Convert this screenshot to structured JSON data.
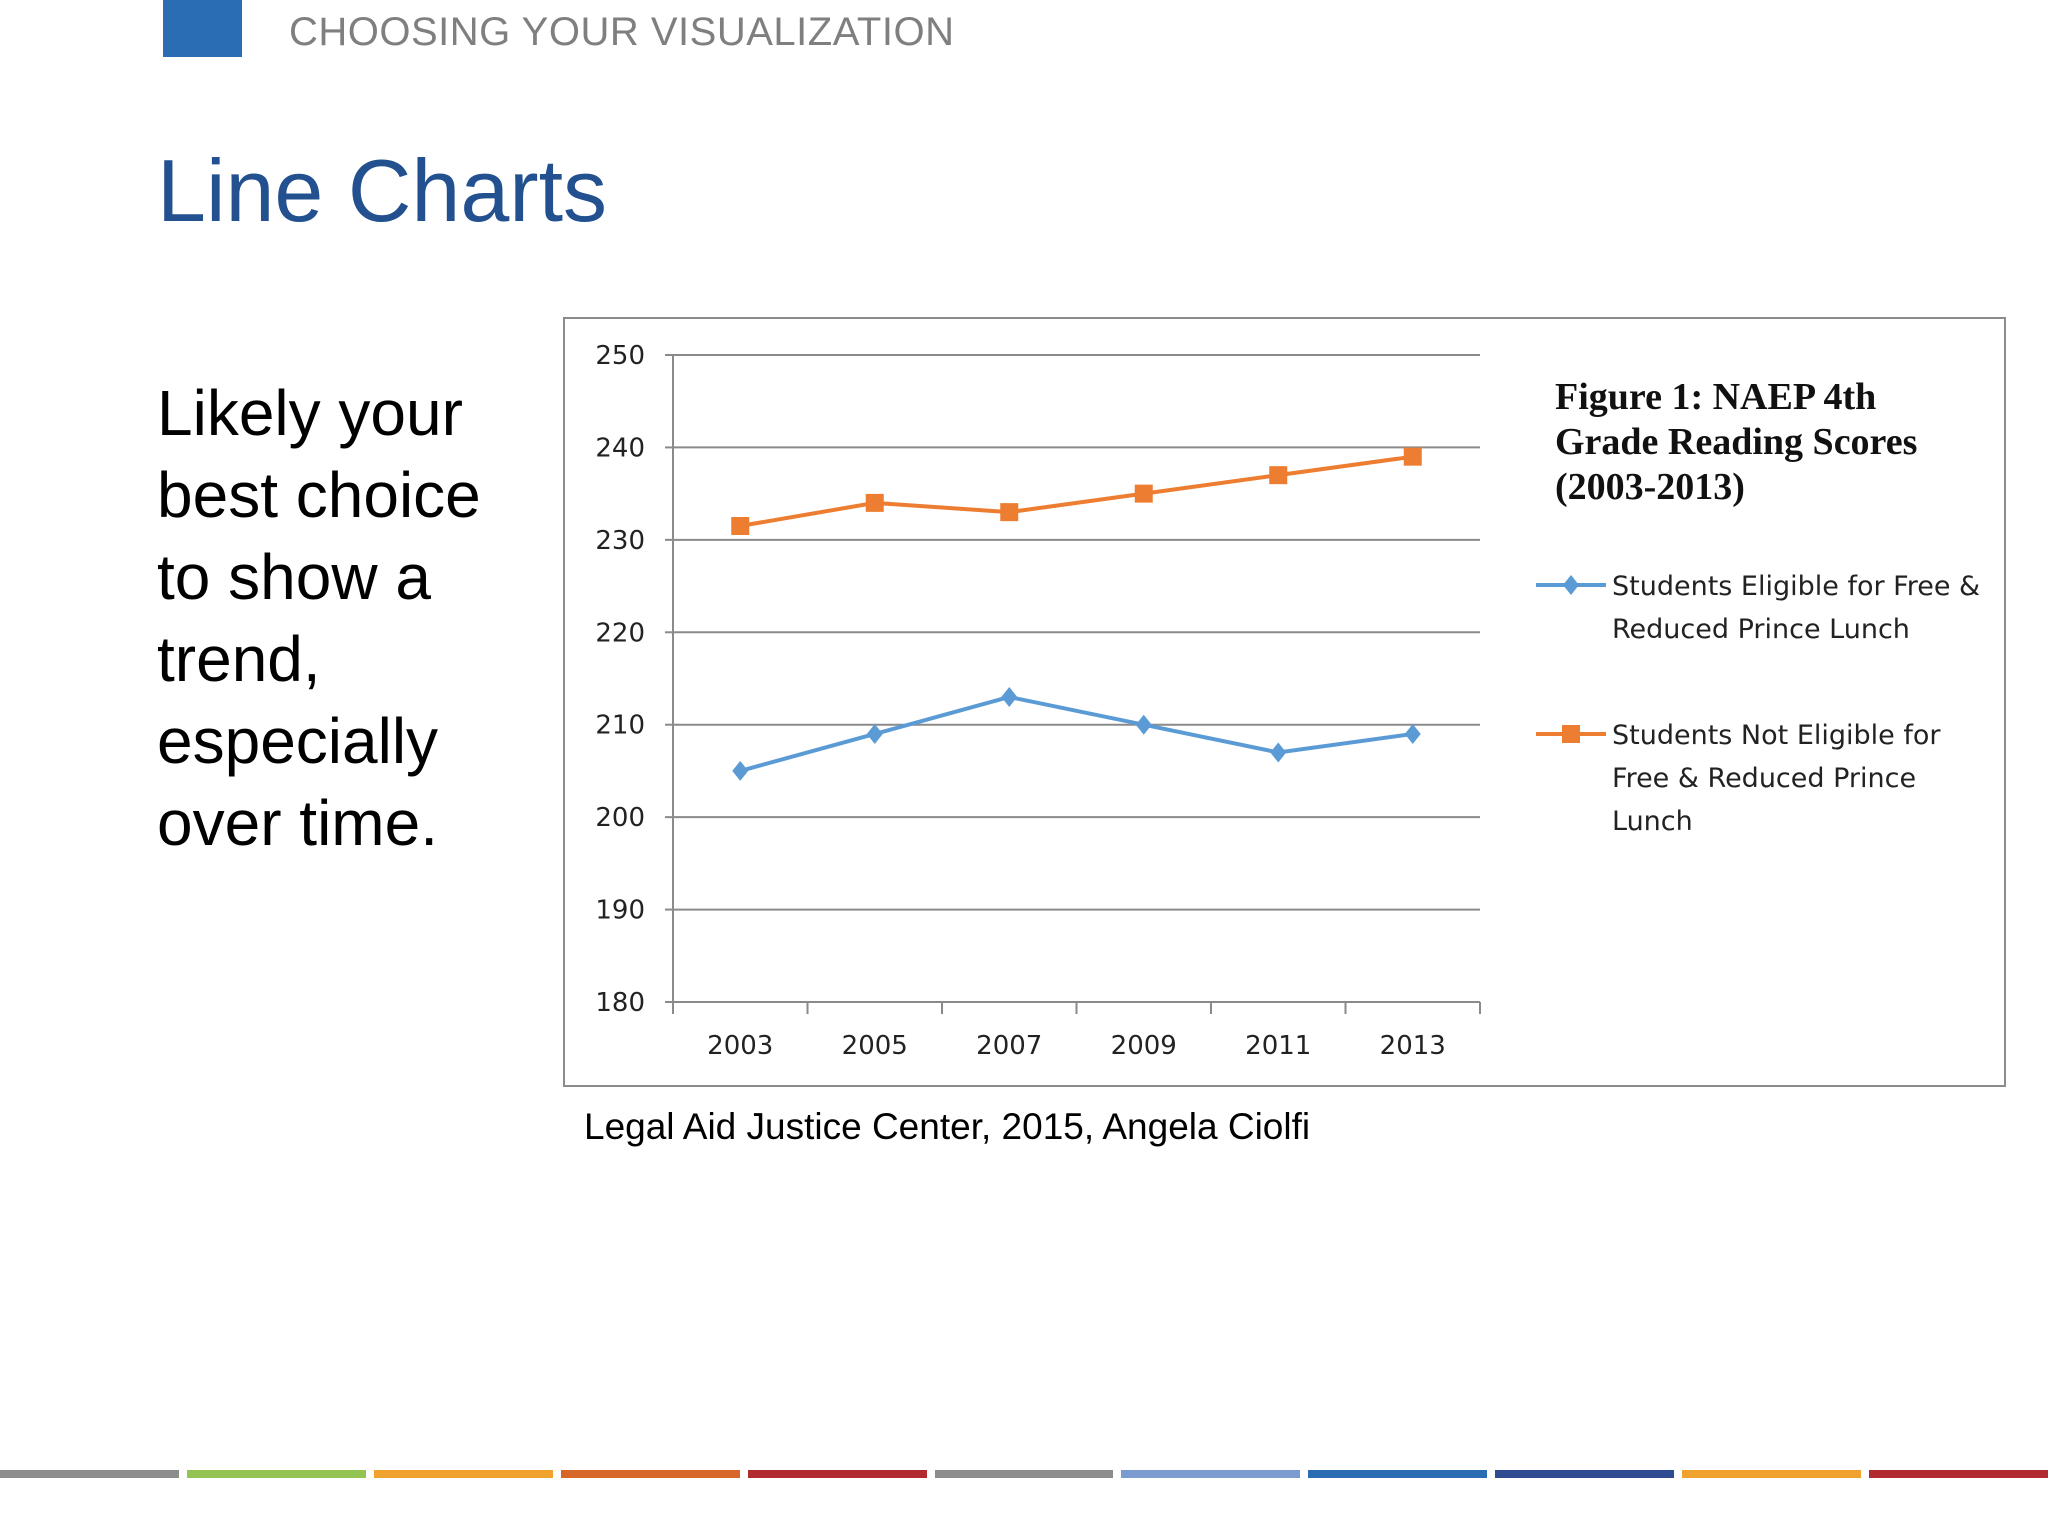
{
  "header": {
    "section_label": "CHOOSING YOUR VISUALIZATION",
    "accent_color": "#2a6db5"
  },
  "slide": {
    "title": "Line Charts",
    "body": "Likely your best choice to show a trend, especially over time.",
    "source": "Legal Aid Justice Center, 2015, Angela Ciolfi"
  },
  "chart_data": {
    "type": "line",
    "title": "Figure 1: NAEP 4th Grade Reading Scores (2003-2013)",
    "xlabel": "",
    "ylabel": "",
    "categories": [
      "2003",
      "2005",
      "2007",
      "2009",
      "2011",
      "2013"
    ],
    "ylim": [
      180,
      250
    ],
    "yticks": [
      180,
      190,
      200,
      210,
      220,
      230,
      240,
      250
    ],
    "grid": true,
    "legend_position": "right",
    "series": [
      {
        "name": "Students Eligible for Free & Reduced Prince Lunch",
        "values": [
          205,
          209,
          213,
          210,
          207,
          209
        ],
        "color": "#5b9bd5",
        "marker": "diamond"
      },
      {
        "name": "Students Not Eligible for Free & Reduced Prince Lunch",
        "values": [
          231.5,
          234,
          233,
          235,
          237,
          239
        ],
        "color": "#ed7d31",
        "marker": "square"
      }
    ]
  },
  "footer": {
    "colors": [
      "#8c8c8c",
      "#92c353",
      "#f0a22e",
      "#d7662a",
      "#b02a30",
      "#8c8c8c",
      "#7c9bd1",
      "#2a6db5",
      "#2f4b91",
      "#f0a22e",
      "#b02a30"
    ]
  }
}
